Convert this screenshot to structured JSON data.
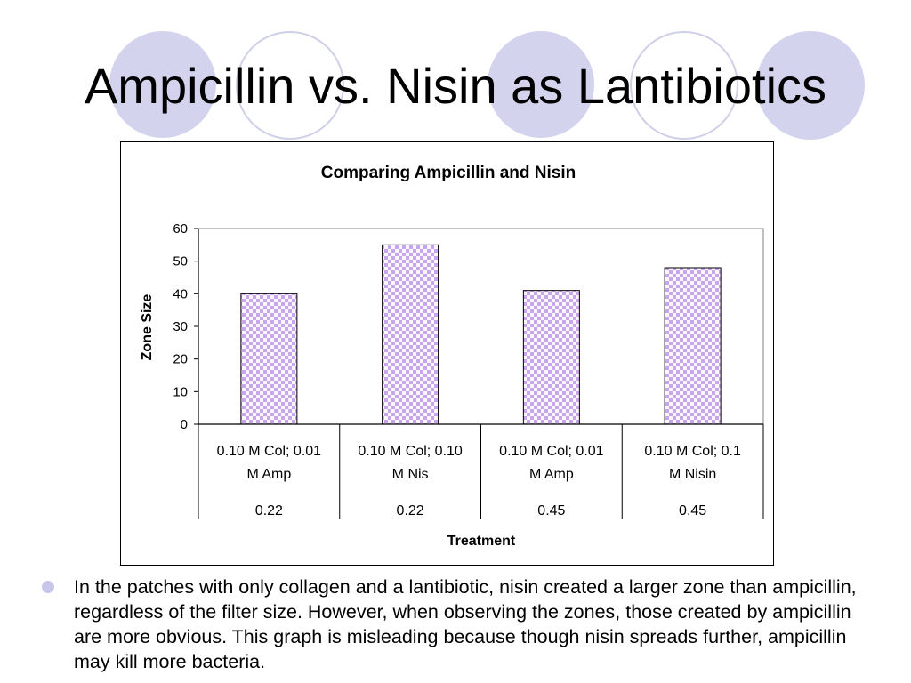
{
  "slide": {
    "title": "Ampicillin vs. Nisin as Lantibiotics",
    "bullet": "In the patches with only collagen and a lantibiotic, nisin created a larger zone than ampicillin, regardless of the filter size.  However, when observing the zones, those created by ampicillin are more obvious.  This graph is misleading because though nisin spreads further, ampicillin may kill more bacteria."
  },
  "colors": {
    "decoration": "#d4d3ee",
    "bar_fill": "#c9a6ec",
    "bar_check": "#ffffff",
    "bullet": "#c8c6ea"
  },
  "chart_data": {
    "type": "bar",
    "title": "Comparing Ampicillin and Nisin",
    "xlabel": "Treatment",
    "ylabel": "Zone Size",
    "ylim": [
      0,
      60
    ],
    "yticks": [
      0,
      10,
      20,
      30,
      40,
      50,
      60
    ],
    "categories": [
      {
        "line1": "0.10 M Col; 0.01",
        "line2": "M Amp",
        "group": "0.22"
      },
      {
        "line1": "0.10 M Col; 0.10",
        "line2": "M Nis",
        "group": "0.22"
      },
      {
        "line1": "0.10 M Col; 0.01",
        "line2": "M Amp",
        "group": "0.45"
      },
      {
        "line1": "0.10 M Col; 0.1",
        "line2": "M Nisin",
        "group": "0.45"
      }
    ],
    "values": [
      40,
      55,
      41,
      48
    ],
    "grid": false,
    "legend": "none"
  }
}
